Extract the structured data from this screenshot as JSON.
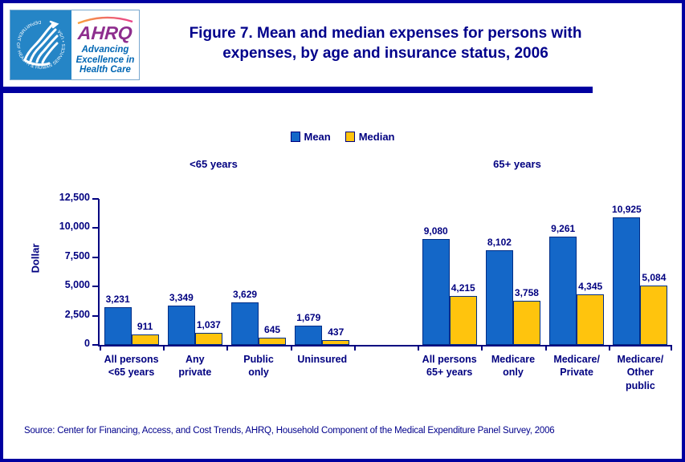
{
  "header": {
    "title": "Figure 7. Mean and median expenses for persons with\nexpenses, by age and insurance status, 2006",
    "logo": {
      "ring_text": "DEPARTMENT OF HEALTH & HUMAN SERVICES • USA",
      "ahrq": "AHRQ",
      "tagline": "Advancing\nExcellence in\nHealth Care"
    }
  },
  "legend": [
    {
      "label": "Mean",
      "color": "#1467C8"
    },
    {
      "label": "Median",
      "color": "#FFC40D"
    }
  ],
  "group_labels": {
    "left": "<65 years",
    "right": "65+ years"
  },
  "chart_data": {
    "type": "bar",
    "title": "Mean and median expenses for persons with expenses, by age and insurance status, 2006",
    "ylabel": "Dollar",
    "xlabel": "",
    "ylim": [
      0,
      12500
    ],
    "ytick_step": 2500,
    "grid": false,
    "legend_position": "top-center",
    "categories": [
      "All persons\n<65 years",
      "Any\nprivate",
      "Public\nonly",
      "Uninsured",
      "All persons\n65+ years",
      "Medicare\nonly",
      "Medicare/\nPrivate",
      "Medicare/\nOther\npublic"
    ],
    "gap_after_index": 3,
    "series": [
      {
        "name": "Mean",
        "color": "#1467C8",
        "values": [
          3231,
          3349,
          3629,
          1679,
          9080,
          8102,
          9261,
          10925
        ]
      },
      {
        "name": "Median",
        "color": "#FFC40D",
        "values": [
          911,
          1037,
          645,
          437,
          4215,
          3758,
          4345,
          5084
        ]
      }
    ]
  },
  "source": "Source: Center for Financing, Access, and Cost Trends, AHRQ, Household Component of the Medical Expenditure Panel Survey, 2006",
  "colors": {
    "navy": "#000080",
    "rule": "#0000A0",
    "bar_border": "#002D87",
    "hhs_blue": "#2585C6",
    "ahrq_purple": "#8E2E8E",
    "tagline_blue": "#0066B3"
  }
}
